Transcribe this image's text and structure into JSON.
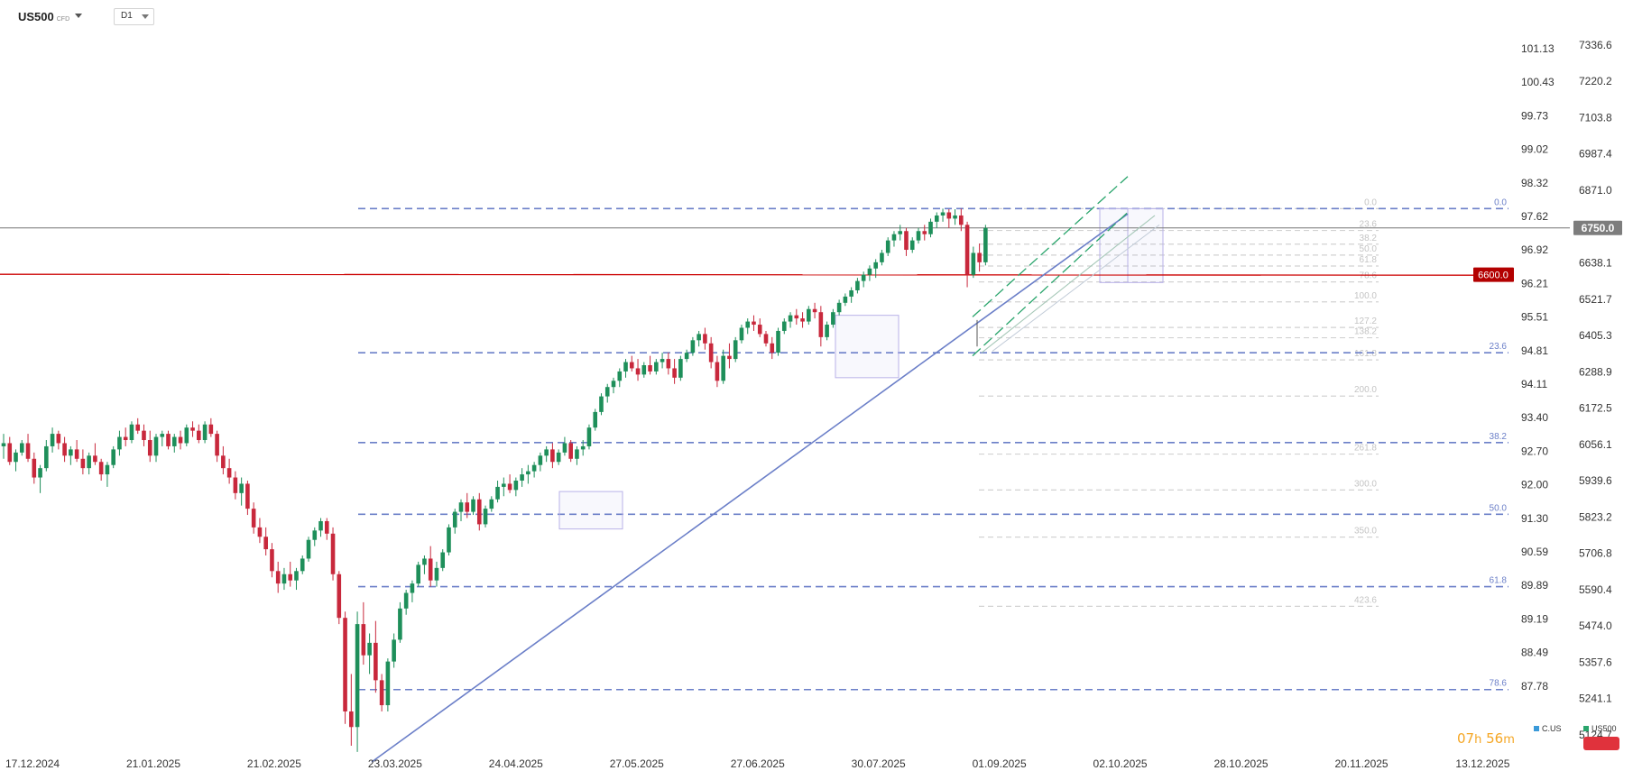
{
  "header": {
    "symbol": "US500",
    "symbol_tag": "CFD",
    "timeframe": "D1"
  },
  "countdown": {
    "hours": "07",
    "hours_unit": "h",
    "minutes": "56",
    "minutes_unit": "m"
  },
  "legend": [
    {
      "label": "C.US",
      "color": "#3a9ad9"
    },
    {
      "label": "US500",
      "color": "#2aa56c"
    }
  ],
  "colors": {
    "up": "#1e8f5a",
    "down": "#c8283c",
    "fib_main": "#6b7fc8",
    "trend": "#6b7fc8",
    "channel": "#2aa56c",
    "support": "#cc0000"
  },
  "chart_data": {
    "type": "candlestick",
    "ylim": [
      5038,
      7423
    ],
    "right_axis_ticks": [
      7336.6,
      7220.2,
      7103.8,
      6987.4,
      6871.0,
      6638.1,
      6521.7,
      6405.3,
      6288.9,
      6172.5,
      6056.1,
      5939.6,
      5823.2,
      5706.8,
      5590.4,
      5474.0,
      5357.6,
      5241.1,
      5124.7
    ],
    "left_axis_ticks": [
      "101.13",
      "100.43",
      "99.73",
      "99.02",
      "98.32",
      "97.62",
      "96.92",
      "96.21",
      "95.51",
      "94.81",
      "94.11",
      "93.40",
      "92.70",
      "92.00",
      "91.30",
      "90.59",
      "89.89",
      "89.19",
      "88.49",
      "87.78"
    ],
    "x_labels": [
      "17.12.2024",
      "21.01.2025",
      "21.02.2025",
      "23.03.2025",
      "24.04.2025",
      "27.05.2025",
      "27.06.2025",
      "30.07.2025",
      "01.09.2025",
      "02.10.2025",
      "28.10.2025",
      "20.11.2025",
      "13.12.2025"
    ],
    "current_price": {
      "label": "6750.0",
      "value": 6750.0
    },
    "support_level": {
      "label": "6600.0",
      "value": 6600.0
    },
    "fib_main": [
      {
        "label": "0.0",
        "value": 6812
      },
      {
        "label": "23.6",
        "value": 6350
      },
      {
        "label": "38.2",
        "value": 6062
      },
      {
        "label": "50.0",
        "value": 5832
      },
      {
        "label": "61.8",
        "value": 5600
      },
      {
        "label": "78.6",
        "value": 5270
      }
    ],
    "fib_ext": [
      {
        "label": "0.0",
        "value": 6812
      },
      {
        "label": "23.6",
        "value": 6742
      },
      {
        "label": "38.2",
        "value": 6698
      },
      {
        "label": "50.0",
        "value": 6663
      },
      {
        "label": "61.8",
        "value": 6628
      },
      {
        "label": "78.6",
        "value": 6577
      },
      {
        "label": "100.0",
        "value": 6513
      },
      {
        "label": "127.2",
        "value": 6431
      },
      {
        "label": "138.2",
        "value": 6398
      },
      {
        "label": "161.8",
        "value": 6327
      },
      {
        "label": "200.0",
        "value": 6211
      },
      {
        "label": "261.8",
        "value": 6025
      },
      {
        "label": "300.0",
        "value": 5910
      },
      {
        "label": "350.0",
        "value": 5759
      },
      {
        "label": "423.6",
        "value": 5537
      }
    ],
    "candles": [
      [
        6050,
        6090,
        6010,
        6060
      ],
      [
        6060,
        6080,
        5990,
        6000
      ],
      [
        6000,
        6040,
        5970,
        6030
      ],
      [
        6030,
        6070,
        6020,
        6060
      ],
      [
        6060,
        6090,
        6000,
        6010
      ],
      [
        6010,
        6030,
        5930,
        5950
      ],
      [
        5950,
        5990,
        5900,
        5980
      ],
      [
        5980,
        6070,
        5970,
        6050
      ],
      [
        6050,
        6110,
        6030,
        6090
      ],
      [
        6090,
        6100,
        6040,
        6060
      ],
      [
        6060,
        6080,
        6000,
        6020
      ],
      [
        6020,
        6050,
        5990,
        6040
      ],
      [
        6040,
        6070,
        6000,
        6010
      ],
      [
        6010,
        6040,
        5960,
        5980
      ],
      [
        5980,
        6030,
        5960,
        6020
      ],
      [
        6020,
        6060,
        5990,
        6000
      ],
      [
        6000,
        6010,
        5940,
        5960
      ],
      [
        5960,
        6000,
        5920,
        5990
      ],
      [
        5990,
        6050,
        5980,
        6040
      ],
      [
        6040,
        6100,
        6020,
        6080
      ],
      [
        6080,
        6110,
        6050,
        6070
      ],
      [
        6070,
        6130,
        6060,
        6120
      ],
      [
        6120,
        6140,
        6090,
        6100
      ],
      [
        6100,
        6120,
        6050,
        6070
      ],
      [
        6070,
        6100,
        6000,
        6020
      ],
      [
        6020,
        6090,
        6000,
        6080
      ],
      [
        6080,
        6100,
        6050,
        6090
      ],
      [
        6090,
        6100,
        6040,
        6050
      ],
      [
        6050,
        6090,
        6030,
        6080
      ],
      [
        6080,
        6100,
        6040,
        6060
      ],
      [
        6060,
        6120,
        6050,
        6110
      ],
      [
        6110,
        6130,
        6080,
        6100
      ],
      [
        6100,
        6120,
        6060,
        6070
      ],
      [
        6070,
        6130,
        6060,
        6120
      ],
      [
        6120,
        6140,
        6080,
        6090
      ],
      [
        6090,
        6100,
        6000,
        6020
      ],
      [
        6020,
        6050,
        5960,
        5980
      ],
      [
        5980,
        6010,
        5930,
        5950
      ],
      [
        5950,
        5970,
        5880,
        5900
      ],
      [
        5900,
        5950,
        5860,
        5930
      ],
      [
        5930,
        5940,
        5830,
        5850
      ],
      [
        5850,
        5870,
        5770,
        5790
      ],
      [
        5790,
        5820,
        5740,
        5760
      ],
      [
        5760,
        5790,
        5700,
        5720
      ],
      [
        5720,
        5740,
        5630,
        5650
      ],
      [
        5650,
        5680,
        5580,
        5610
      ],
      [
        5610,
        5660,
        5590,
        5640
      ],
      [
        5640,
        5680,
        5600,
        5620
      ],
      [
        5620,
        5660,
        5590,
        5650
      ],
      [
        5650,
        5700,
        5640,
        5690
      ],
      [
        5690,
        5760,
        5680,
        5750
      ],
      [
        5750,
        5790,
        5730,
        5780
      ],
      [
        5780,
        5820,
        5760,
        5810
      ],
      [
        5810,
        5820,
        5750,
        5770
      ],
      [
        5770,
        5790,
        5620,
        5640
      ],
      [
        5640,
        5650,
        5480,
        5500
      ],
      [
        5500,
        5520,
        5160,
        5200
      ],
      [
        5200,
        5320,
        5090,
        5150
      ],
      [
        5150,
        5520,
        5070,
        5480
      ],
      [
        5480,
        5550,
        5350,
        5380
      ],
      [
        5380,
        5450,
        5320,
        5420
      ],
      [
        5420,
        5490,
        5260,
        5300
      ],
      [
        5300,
        5320,
        5200,
        5220
      ],
      [
        5220,
        5370,
        5200,
        5360
      ],
      [
        5360,
        5450,
        5340,
        5430
      ],
      [
        5430,
        5550,
        5420,
        5530
      ],
      [
        5530,
        5590,
        5510,
        5580
      ],
      [
        5580,
        5620,
        5550,
        5610
      ],
      [
        5610,
        5680,
        5600,
        5670
      ],
      [
        5670,
        5700,
        5640,
        5690
      ],
      [
        5690,
        5730,
        5600,
        5620
      ],
      [
        5620,
        5680,
        5600,
        5660
      ],
      [
        5660,
        5720,
        5650,
        5710
      ],
      [
        5710,
        5800,
        5700,
        5790
      ],
      [
        5790,
        5850,
        5770,
        5840
      ],
      [
        5840,
        5880,
        5810,
        5870
      ],
      [
        5870,
        5900,
        5820,
        5840
      ],
      [
        5840,
        5890,
        5830,
        5880
      ],
      [
        5880,
        5900,
        5780,
        5800
      ],
      [
        5800,
        5860,
        5790,
        5850
      ],
      [
        5850,
        5890,
        5840,
        5880
      ],
      [
        5880,
        5940,
        5870,
        5920
      ],
      [
        5920,
        5950,
        5890,
        5930
      ],
      [
        5930,
        5960,
        5900,
        5910
      ],
      [
        5910,
        5950,
        5890,
        5940
      ],
      [
        5940,
        5980,
        5920,
        5960
      ],
      [
        5960,
        5990,
        5930,
        5970
      ],
      [
        5970,
        6000,
        5950,
        5990
      ],
      [
        5990,
        6030,
        5970,
        6020
      ],
      [
        6020,
        6050,
        6000,
        6040
      ],
      [
        6040,
        6060,
        5980,
        6000
      ],
      [
        6000,
        6040,
        5990,
        6030
      ],
      [
        6030,
        6080,
        6020,
        6060
      ],
      [
        6060,
        6070,
        6000,
        6010
      ],
      [
        6010,
        6050,
        5990,
        6040
      ],
      [
        6040,
        6070,
        6020,
        6050
      ],
      [
        6050,
        6120,
        6040,
        6110
      ],
      [
        6110,
        6170,
        6100,
        6160
      ],
      [
        6160,
        6220,
        6150,
        6210
      ],
      [
        6210,
        6250,
        6190,
        6240
      ],
      [
        6240,
        6270,
        6220,
        6260
      ],
      [
        6260,
        6300,
        6240,
        6290
      ],
      [
        6290,
        6330,
        6270,
        6320
      ],
      [
        6320,
        6340,
        6290,
        6300
      ],
      [
        6300,
        6330,
        6260,
        6280
      ],
      [
        6280,
        6320,
        6270,
        6310
      ],
      [
        6310,
        6340,
        6280,
        6290
      ],
      [
        6290,
        6330,
        6280,
        6320
      ],
      [
        6320,
        6350,
        6300,
        6330
      ],
      [
        6330,
        6350,
        6280,
        6300
      ],
      [
        6300,
        6330,
        6250,
        6270
      ],
      [
        6270,
        6340,
        6260,
        6330
      ],
      [
        6330,
        6360,
        6320,
        6350
      ],
      [
        6350,
        6400,
        6340,
        6390
      ],
      [
        6390,
        6420,
        6370,
        6410
      ],
      [
        6410,
        6430,
        6360,
        6380
      ],
      [
        6380,
        6400,
        6300,
        6320
      ],
      [
        6320,
        6340,
        6240,
        6260
      ],
      [
        6260,
        6360,
        6250,
        6340
      ],
      [
        6340,
        6380,
        6300,
        6330
      ],
      [
        6330,
        6400,
        6320,
        6390
      ],
      [
        6390,
        6440,
        6380,
        6430
      ],
      [
        6430,
        6460,
        6410,
        6450
      ],
      [
        6450,
        6470,
        6420,
        6440
      ],
      [
        6440,
        6460,
        6400,
        6410
      ],
      [
        6410,
        6420,
        6370,
        6380
      ],
      [
        6380,
        6400,
        6330,
        6350
      ],
      [
        6350,
        6430,
        6340,
        6420
      ],
      [
        6420,
        6460,
        6410,
        6450
      ],
      [
        6450,
        6480,
        6430,
        6470
      ],
      [
        6470,
        6490,
        6440,
        6460
      ],
      [
        6460,
        6480,
        6430,
        6450
      ],
      [
        6450,
        6500,
        6440,
        6490
      ],
      [
        6490,
        6510,
        6460,
        6480
      ],
      [
        6480,
        6500,
        6370,
        6400
      ],
      [
        6400,
        6450,
        6390,
        6440
      ],
      [
        6440,
        6490,
        6430,
        6480
      ],
      [
        6480,
        6520,
        6470,
        6510
      ],
      [
        6510,
        6540,
        6500,
        6530
      ],
      [
        6530,
        6560,
        6510,
        6550
      ],
      [
        6550,
        6590,
        6540,
        6580
      ],
      [
        6580,
        6610,
        6560,
        6600
      ],
      [
        6600,
        6630,
        6580,
        6620
      ],
      [
        6620,
        6650,
        6590,
        6640
      ],
      [
        6640,
        6680,
        6630,
        6670
      ],
      [
        6670,
        6720,
        6660,
        6710
      ],
      [
        6710,
        6740,
        6690,
        6730
      ],
      [
        6730,
        6760,
        6710,
        6740
      ],
      [
        6740,
        6750,
        6660,
        6680
      ],
      [
        6680,
        6720,
        6670,
        6710
      ],
      [
        6710,
        6750,
        6700,
        6740
      ],
      [
        6740,
        6760,
        6710,
        6730
      ],
      [
        6730,
        6780,
        6720,
        6770
      ],
      [
        6770,
        6800,
        6750,
        6790
      ],
      [
        6790,
        6812,
        6770,
        6800
      ],
      [
        6800,
        6810,
        6750,
        6780
      ],
      [
        6780,
        6810,
        6760,
        6790
      ],
      [
        6790,
        6812,
        6740,
        6760
      ],
      [
        6760,
        6770,
        6560,
        6600
      ],
      [
        6600,
        6690,
        6590,
        6670
      ],
      [
        6670,
        6700,
        6610,
        6640
      ],
      [
        6640,
        6760,
        6630,
        6750
      ]
    ]
  }
}
